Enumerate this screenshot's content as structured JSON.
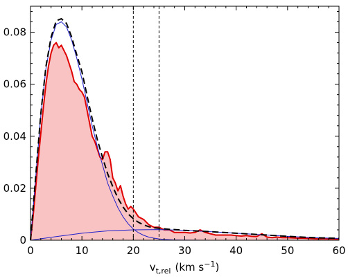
{
  "chart_data": {
    "type": "area",
    "xlabel_main": "v",
    "xlabel_sub": "t,rel",
    "xlabel_units": "(km s",
    "xlabel_exp": "−1",
    "xlabel_close": ")",
    "ylabel": "",
    "xlim": [
      0,
      60
    ],
    "ylim": [
      0,
      0.09
    ],
    "x_ticks": [
      0,
      10,
      20,
      30,
      40,
      50,
      60
    ],
    "y_ticks": [
      0,
      0.02,
      0.04,
      0.06,
      0.08
    ],
    "x_tick_labels": [
      "0",
      "10",
      "20",
      "30",
      "40",
      "50",
      "60"
    ],
    "y_tick_labels": [
      "0",
      "0.02",
      "0.04",
      "0.06",
      "0.08"
    ],
    "vertical_lines": [
      20,
      25
    ],
    "grid": false,
    "colors": {
      "histogram_line": "#e00000",
      "histogram_fill": "#f9c3c3",
      "component": "#2020cc",
      "total": "#000000"
    },
    "series": [
      {
        "style": "filled-histogram",
        "x": [
          0,
          0.5,
          1,
          1.5,
          2,
          2.5,
          3,
          3.5,
          4,
          4.5,
          5,
          5.5,
          6,
          6.5,
          7,
          7.5,
          8,
          8.5,
          9,
          9.5,
          10,
          10.5,
          11,
          11.5,
          12,
          12.5,
          13,
          13.5,
          14,
          14.5,
          15,
          15.5,
          16,
          16.5,
          17,
          17.5,
          18,
          18.5,
          19,
          19.5,
          20,
          21,
          22,
          23,
          24,
          25,
          26,
          27,
          28,
          29,
          30,
          31,
          32,
          33,
          34,
          35,
          36,
          37,
          38,
          39,
          40,
          41,
          42,
          43,
          44,
          45,
          46,
          47,
          48,
          49,
          50,
          51,
          52,
          53,
          54,
          55,
          56,
          57,
          58,
          59,
          60
        ],
        "values": [
          0,
          0.009,
          0.02,
          0.031,
          0.041,
          0.051,
          0.06,
          0.067,
          0.072,
          0.075,
          0.076,
          0.074,
          0.075,
          0.073,
          0.071,
          0.068,
          0.065,
          0.061,
          0.06,
          0.058,
          0.057,
          0.055,
          0.05,
          0.045,
          0.04,
          0.038,
          0.035,
          0.032,
          0.031,
          0.034,
          0.034,
          0.031,
          0.024,
          0.022,
          0.019,
          0.021,
          0.017,
          0.014,
          0.012,
          0.013,
          0.012,
          0.009,
          0.008,
          0.006,
          0.005,
          0.005,
          0.004,
          0.004,
          0.003,
          0.003,
          0.003,
          0.0028,
          0.003,
          0.004,
          0.003,
          0.0025,
          0.002,
          0.002,
          0.002,
          0.002,
          0.0018,
          0.0016,
          0.0018,
          0.0015,
          0.0014,
          0.0025,
          0.0012,
          0.001,
          0.0012,
          0.001,
          0.001,
          0.0009,
          0.0008,
          0.0008,
          0.0007,
          0.0006,
          0.0005,
          0.0006,
          0.0005,
          0.0005,
          0.0004
        ]
      },
      {
        "style": "thin-solid",
        "x": [
          0,
          1,
          2,
          3,
          4,
          5,
          6,
          7,
          8,
          9,
          10,
          11,
          12,
          13,
          14,
          15,
          16,
          17,
          18,
          19,
          20,
          21,
          22,
          23,
          24,
          25,
          26,
          27,
          28,
          30,
          32,
          35,
          40,
          45,
          50,
          55,
          60
        ],
        "values": [
          0,
          0.024,
          0.048,
          0.066,
          0.077,
          0.083,
          0.084,
          0.082,
          0.077,
          0.07,
          0.062,
          0.053,
          0.044,
          0.036,
          0.029,
          0.022,
          0.017,
          0.0125,
          0.009,
          0.0063,
          0.0043,
          0.0029,
          0.0019,
          0.0012,
          0.0008,
          0.0005,
          0.0003,
          0.0002,
          0.0001,
          5e-05,
          2e-05,
          0,
          0,
          0,
          0,
          0,
          0
        ]
      },
      {
        "style": "thin-solid",
        "x": [
          0,
          5,
          10,
          15,
          20,
          25,
          30,
          35,
          40,
          45,
          50,
          55,
          60
        ],
        "values": [
          0,
          0.0014,
          0.0027,
          0.0036,
          0.004,
          0.0041,
          0.0038,
          0.0033,
          0.0027,
          0.0021,
          0.0015,
          0.001,
          0.0007
        ]
      },
      {
        "style": "dashed",
        "x": [
          0,
          1,
          2,
          3,
          4,
          5,
          6,
          7,
          8,
          9,
          10,
          11,
          12,
          13,
          14,
          15,
          16,
          17,
          18,
          19,
          20,
          21,
          22,
          23,
          24,
          25,
          26,
          27,
          28,
          30,
          32,
          35,
          40,
          45,
          50,
          55,
          60
        ],
        "values": [
          0,
          0.0243,
          0.0486,
          0.0668,
          0.0781,
          0.0844,
          0.0852,
          0.0834,
          0.0782,
          0.0713,
          0.0648,
          0.0556,
          0.0467,
          0.0387,
          0.0319,
          0.0256,
          0.0206,
          0.0162,
          0.0128,
          0.0101,
          0.0083,
          0.0069,
          0.0059,
          0.0052,
          0.0048,
          0.0046,
          0.0044,
          0.0042,
          0.0041,
          0.0038,
          0.0036,
          0.0033,
          0.0027,
          0.0021,
          0.0015,
          0.001,
          0.0007
        ]
      }
    ]
  }
}
